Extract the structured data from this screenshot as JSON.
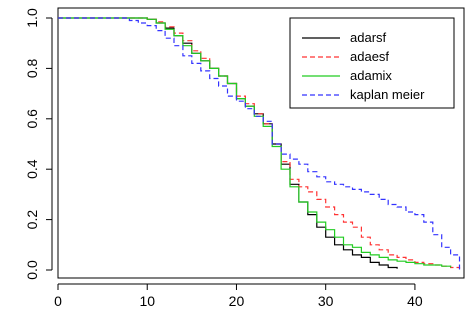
{
  "chart_data": {
    "type": "line",
    "title": "",
    "xlabel": "",
    "ylabel": "",
    "xlim": [
      0,
      45.5
    ],
    "ylim": [
      0,
      1
    ],
    "x_ticks": [
      0,
      10,
      20,
      30,
      40
    ],
    "y_ticks": [
      0.0,
      0.2,
      0.4,
      0.6,
      0.8,
      1.0
    ],
    "y_tick_labels": [
      "0.0",
      "0.2",
      "0.4",
      "0.6",
      "0.8",
      "1.0"
    ],
    "grid": false,
    "legend_position": "top-right",
    "series": [
      {
        "name": "adarsf",
        "color": "#000000",
        "dash": "solid",
        "x": [
          0,
          9,
          10,
          11,
          12,
          13,
          14,
          15,
          16,
          17,
          18,
          19,
          20,
          21,
          22,
          23,
          24,
          25,
          26,
          27,
          28,
          29,
          30,
          31,
          32,
          33,
          34,
          35,
          36,
          37,
          38
        ],
        "y": [
          1.0,
          1.0,
          0.995,
          0.98,
          0.96,
          0.93,
          0.9,
          0.86,
          0.83,
          0.8,
          0.77,
          0.74,
          0.68,
          0.65,
          0.62,
          0.58,
          0.5,
          0.42,
          0.34,
          0.27,
          0.22,
          0.17,
          0.13,
          0.1,
          0.08,
          0.06,
          0.05,
          0.03,
          0.02,
          0.01,
          0.005
        ]
      },
      {
        "name": "adaesf",
        "color": "#ff3333",
        "dash": "dashed",
        "x": [
          0,
          9,
          10,
          11,
          12,
          13,
          14,
          15,
          16,
          17,
          18,
          19,
          20,
          21,
          22,
          23,
          24,
          25,
          26,
          27,
          28,
          29,
          30,
          31,
          32,
          33,
          34,
          35,
          36,
          37,
          38,
          39,
          40,
          41,
          42,
          43,
          44,
          45
        ],
        "y": [
          1.0,
          1.0,
          0.995,
          0.985,
          0.965,
          0.94,
          0.91,
          0.87,
          0.84,
          0.8,
          0.77,
          0.74,
          0.69,
          0.66,
          0.62,
          0.58,
          0.5,
          0.43,
          0.36,
          0.33,
          0.31,
          0.28,
          0.25,
          0.22,
          0.19,
          0.17,
          0.13,
          0.1,
          0.08,
          0.06,
          0.05,
          0.04,
          0.03,
          0.025,
          0.02,
          0.015,
          0.01,
          0.005
        ]
      },
      {
        "name": "adamix",
        "color": "#22cc22",
        "dash": "solid",
        "x": [
          0,
          9,
          10,
          11,
          12,
          13,
          14,
          15,
          16,
          17,
          18,
          19,
          20,
          21,
          22,
          23,
          24,
          25,
          26,
          27,
          28,
          29,
          30,
          31,
          32,
          33,
          34,
          35,
          36,
          37,
          38,
          39,
          40,
          41,
          42,
          43,
          44
        ],
        "y": [
          1.0,
          1.0,
          0.995,
          0.98,
          0.955,
          0.93,
          0.89,
          0.86,
          0.83,
          0.8,
          0.77,
          0.74,
          0.68,
          0.65,
          0.61,
          0.57,
          0.49,
          0.4,
          0.33,
          0.27,
          0.23,
          0.19,
          0.16,
          0.13,
          0.1,
          0.09,
          0.07,
          0.06,
          0.05,
          0.04,
          0.035,
          0.03,
          0.025,
          0.02,
          0.02,
          0.015,
          0.01
        ]
      },
      {
        "name": "kaplan meier",
        "color": "#3333ff",
        "dash": "dashed",
        "x": [
          0,
          7,
          8,
          9,
          10,
          11,
          12,
          13,
          14,
          15,
          16,
          17,
          18,
          19,
          20,
          21,
          22,
          23,
          24,
          25,
          26,
          27,
          28,
          29,
          30,
          31,
          32,
          33,
          34,
          35,
          36,
          37,
          38,
          39,
          40,
          41,
          42,
          43,
          44,
          45
        ],
        "y": [
          1.0,
          1.0,
          0.99,
          0.98,
          0.97,
          0.95,
          0.92,
          0.89,
          0.85,
          0.82,
          0.79,
          0.76,
          0.73,
          0.69,
          0.67,
          0.64,
          0.61,
          0.59,
          0.5,
          0.46,
          0.44,
          0.42,
          0.39,
          0.37,
          0.35,
          0.34,
          0.33,
          0.32,
          0.31,
          0.3,
          0.28,
          0.26,
          0.25,
          0.23,
          0.22,
          0.19,
          0.14,
          0.09,
          0.06,
          0.0
        ]
      }
    ]
  }
}
